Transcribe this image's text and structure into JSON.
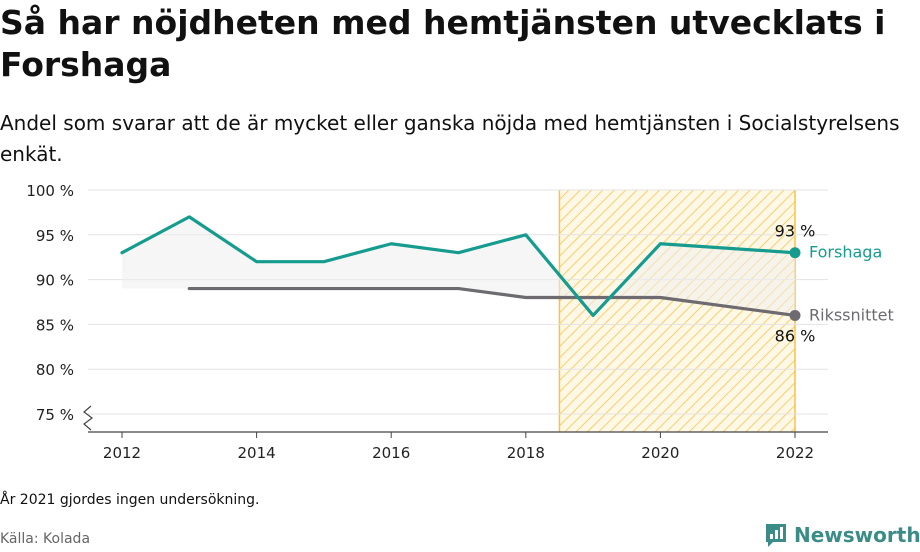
{
  "title": "Så har nöjdheten med hemtjänsten utvecklats i Forshaga",
  "subtitle": "Andel som svarar att de är mycket eller ganska nöjda med hemtjänsten i Socialstyrelsens enkät.",
  "note": "År 2021 gjordes ingen undersökning.",
  "source": "Källa: Kolada",
  "brand": "Newsworthy",
  "colors": {
    "forshaga": "#169c8f",
    "riket": "#6d6b70",
    "highlight": "#f6c343",
    "brand": "#3b8c87"
  },
  "chart_data": {
    "type": "line",
    "x": [
      2012,
      2013,
      2014,
      2015,
      2016,
      2017,
      2018,
      2019,
      2020,
      2022
    ],
    "xticks": [
      "2012",
      "2014",
      "2016",
      "2018",
      "2020",
      "2022"
    ],
    "yticks": [
      "75 %",
      "80 %",
      "85 %",
      "90 %",
      "95 %",
      "100 %"
    ],
    "ylim": [
      75,
      100
    ],
    "xlim": [
      2012,
      2022
    ],
    "grid": true,
    "highlight_range": [
      2018.5,
      2022
    ],
    "series": [
      {
        "name": "Forshaga",
        "color": "#169c8f",
        "values": [
          93,
          97,
          92,
          92,
          94,
          93,
          95,
          86,
          94,
          93
        ],
        "end_label": "93 %"
      },
      {
        "name": "Rikssnittet",
        "color": "#6d6b70",
        "values": [
          null,
          89,
          89,
          89,
          89,
          89,
          88,
          88,
          88,
          86
        ],
        "end_label": "86 %"
      }
    ]
  }
}
